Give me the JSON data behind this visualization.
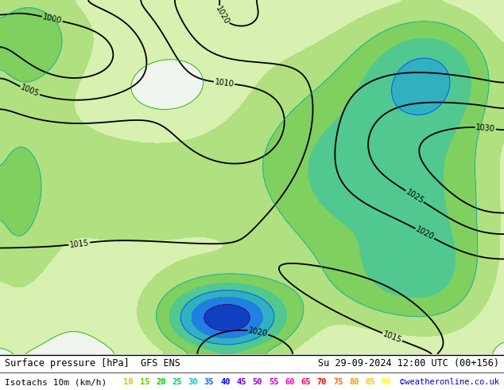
{
  "title_left": "Surface pressure [hPa]  GFS ENS",
  "title_right": "Su 29-09-2024 12:00 UTC (00+156)",
  "legend_label": "Isotachs 10m (km/h)",
  "copyright": "©weatheronline.co.uk",
  "isotach_values": [
    10,
    15,
    20,
    25,
    30,
    35,
    40,
    45,
    50,
    55,
    60,
    65,
    70,
    75,
    80,
    85,
    90
  ],
  "legend_colors": [
    "#c8c800",
    "#64c800",
    "#00c800",
    "#00c864",
    "#00c8c8",
    "#0064ff",
    "#0000ff",
    "#6400c8",
    "#9600c8",
    "#c800c8",
    "#ff00c8",
    "#ff0064",
    "#ff0000",
    "#ff6400",
    "#ff9600",
    "#ffc800",
    "#ffff00"
  ],
  "fill_colors": [
    "#e8f5d0",
    "#d0f0a0",
    "#a0e070",
    "#70d070",
    "#50c8a0",
    "#40a0e0",
    "#3060d0",
    "#2020b0",
    "#500090",
    "#800080",
    "#c000a0",
    "#e00050",
    "#e00000",
    "#e06000",
    "#e09000",
    "#e0c000",
    "#e0e000"
  ],
  "bg_color": "#ffffff",
  "fig_width": 6.34,
  "fig_height": 4.9
}
